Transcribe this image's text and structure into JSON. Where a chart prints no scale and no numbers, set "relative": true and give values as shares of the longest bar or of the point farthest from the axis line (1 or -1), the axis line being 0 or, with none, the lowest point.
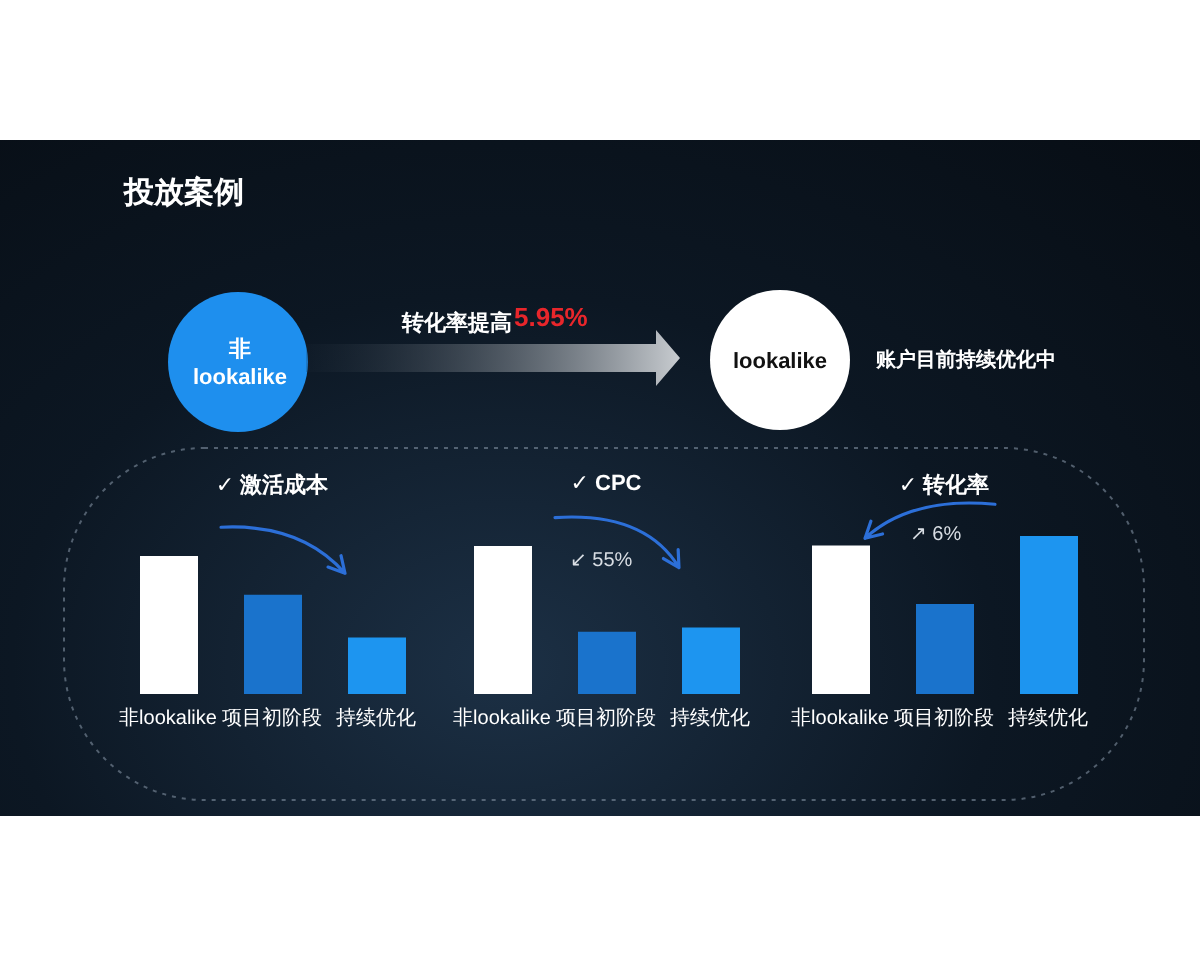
{
  "chart_data": [
    {
      "type": "other",
      "title": "投放案例",
      "annotations": [
        "非 lookalike",
        "转化率提高",
        "5.95%",
        "lookalike",
        "账户目前持续优化中"
      ]
    },
    {
      "type": "bar",
      "title": "✓ 激活成本",
      "categories": [
        "非lookalike",
        "项目初阶段",
        "持续优化"
      ],
      "values": [
        1,
        0.72,
        0.41
      ],
      "colors": [
        "#ffffff",
        "#1a73cc",
        "#1d95f0"
      ],
      "relative": true
    },
    {
      "type": "bar",
      "title": "✓ CPC",
      "categories": [
        "非lookalike",
        "项目初阶段",
        "持续优化"
      ],
      "values": [
        1,
        0.42,
        0.45
      ],
      "colors": [
        "#ffffff",
        "#1a73cc",
        "#1d95f0"
      ],
      "relative": true,
      "annotations": [
        "↙ 55%"
      ]
    },
    {
      "type": "bar",
      "title": "✓ 转化率",
      "categories": [
        "非lookalike",
        "项目初阶段",
        "持续优化"
      ],
      "values": [
        0.94,
        0.57,
        1
      ],
      "colors": [
        "#ffffff",
        "#1a73cc",
        "#1d95f0"
      ],
      "relative": true,
      "annotations": [
        "↗ 6%"
      ]
    }
  ]
}
